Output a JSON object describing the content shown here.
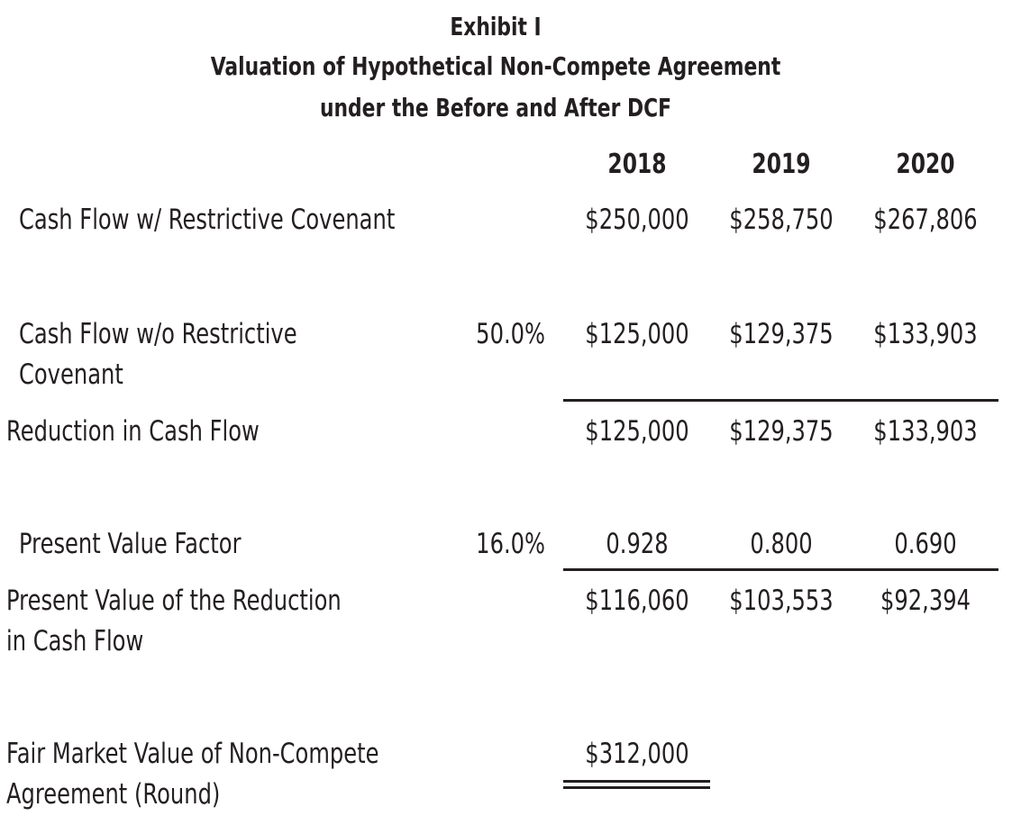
{
  "title": {
    "line1": "Exhibit I",
    "line2": "Valuation of Hypothetical Non-Compete Agreement",
    "line3": "under the Before and After DCF"
  },
  "years": [
    "2018",
    "2019",
    "2020"
  ],
  "rows": {
    "cash_flow_with": {
      "label": "Cash Flow w/ Restrictive Covenant",
      "values": [
        "$250,000",
        "$258,750",
        "$267,806"
      ]
    },
    "cash_flow_without": {
      "label_line1": "Cash Flow w/o Restrictive",
      "label_line2": "Covenant",
      "rate": "50.0%",
      "values": [
        "$125,000",
        "$129,375",
        "$133,903"
      ]
    },
    "reduction": {
      "label": "Reduction in Cash Flow",
      "values": [
        "$125,000",
        "$129,375",
        "$133,903"
      ]
    },
    "pv_factor": {
      "label": "Present Value Factor",
      "rate": "16.0%",
      "values": [
        "0.928",
        "0.800",
        "0.690"
      ]
    },
    "pv_reduction": {
      "label_line1": "Present Value of the Reduction",
      "label_line2": "in Cash Flow",
      "values": [
        "$116,060",
        "$103,553",
        "$92,394"
      ]
    },
    "fmv": {
      "label_line1": "Fair Market Value of Non-Compete",
      "label_line2": "Agreement (Round)",
      "value": "$312,000"
    }
  }
}
